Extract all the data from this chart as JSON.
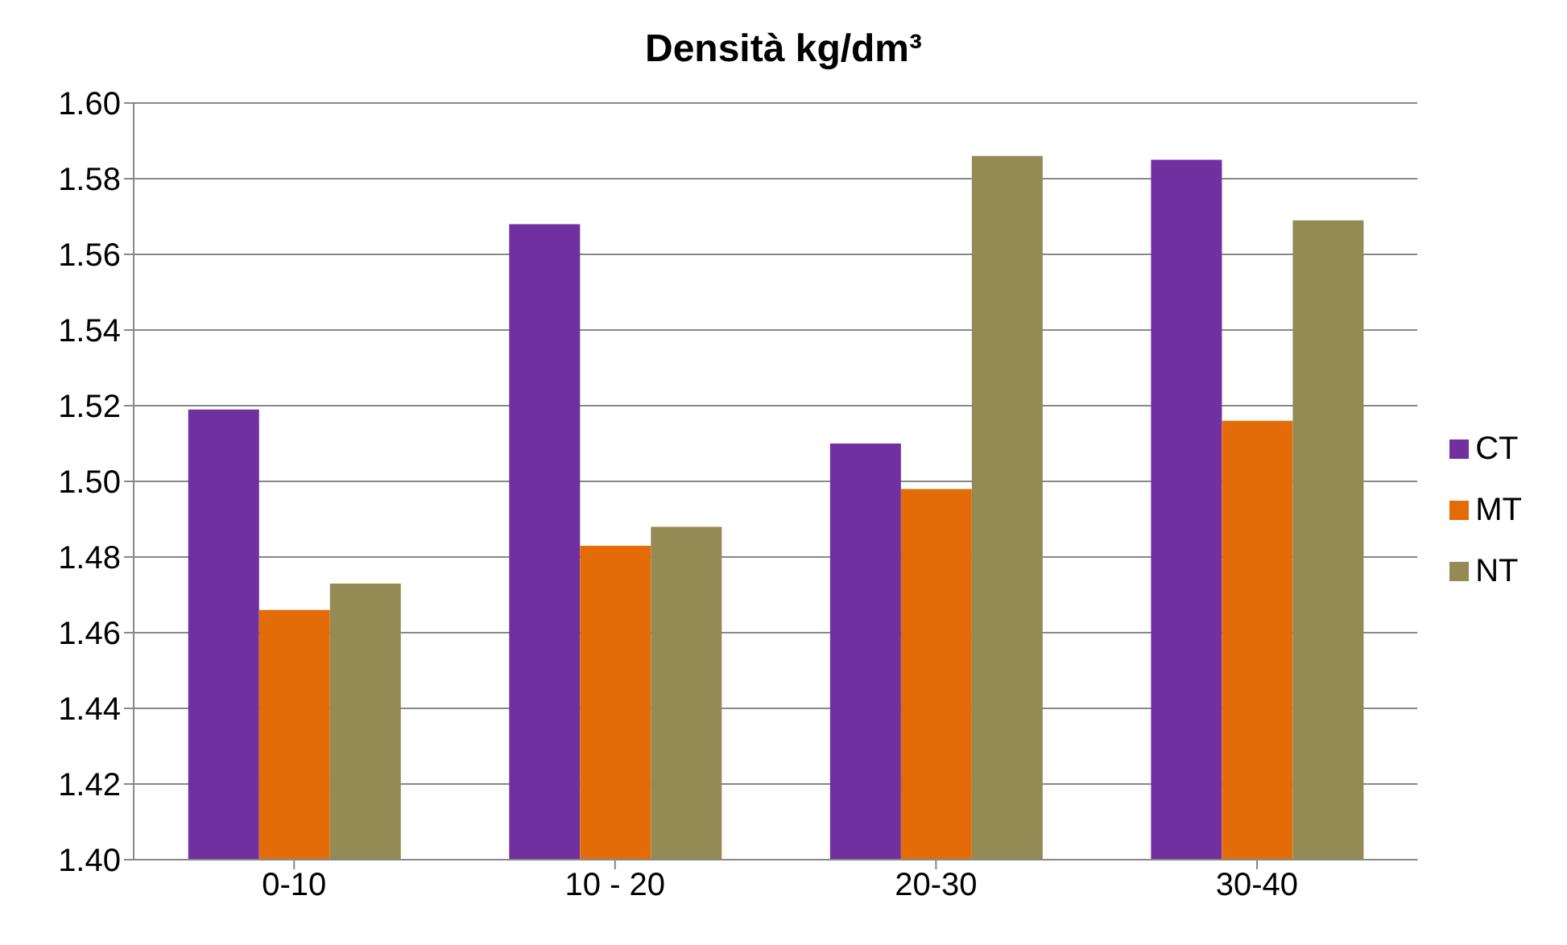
{
  "chart_data": {
    "type": "bar",
    "title": "Densità kg/dm³",
    "categories": [
      "0-10",
      "10 - 20",
      "20-30",
      "30-40"
    ],
    "series": [
      {
        "name": "CT",
        "color": "#7030a0",
        "values": [
          1.519,
          1.568,
          1.51,
          1.585
        ]
      },
      {
        "name": "MT",
        "color": "#e36c09",
        "values": [
          1.466,
          1.483,
          1.498,
          1.516
        ]
      },
      {
        "name": "NT",
        "color": "#948a54",
        "values": [
          1.473,
          1.488,
          1.586,
          1.569
        ]
      }
    ],
    "ylim": [
      1.4,
      1.6
    ],
    "yticks": [
      {
        "value": 1.4,
        "label": "1.40"
      },
      1.42,
      1.44,
      1.46,
      1.48,
      {
        "value": 1.5,
        "label": "1.50"
      },
      1.52,
      1.54,
      1.56,
      1.58,
      {
        "value": 1.6,
        "label": "1.60"
      }
    ],
    "grid": "y",
    "legend": "right"
  }
}
